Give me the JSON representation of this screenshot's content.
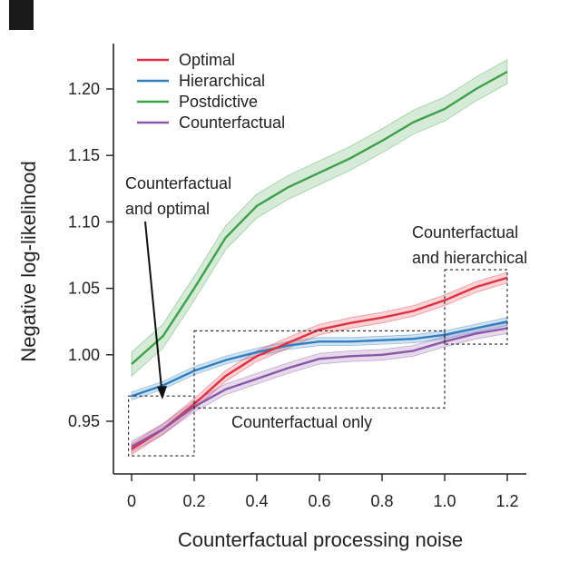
{
  "chart_data": {
    "type": "line",
    "xlabel": "Counterfactual processing noise",
    "ylabel": "Negative log-likelihood",
    "xlim": [
      -0.06,
      1.26
    ],
    "ylim": [
      0.912,
      1.235
    ],
    "xticks": [
      0,
      0.2,
      0.4,
      0.6,
      0.8,
      1.0,
      1.2
    ],
    "xtick_labels": [
      "0",
      "0.2",
      "0.4",
      "0.6",
      "0.8",
      "1.0",
      "1.2"
    ],
    "yticks": [
      0.95,
      1.0,
      1.05,
      1.1,
      1.15,
      1.2
    ],
    "ytick_labels": [
      "0.95",
      "1.00",
      "1.05",
      "1.10",
      "1.15",
      "1.20"
    ],
    "legend_position": "top-left",
    "x": [
      0,
      0.1,
      0.2,
      0.3,
      0.4,
      0.5,
      0.6,
      0.7,
      0.8,
      0.9,
      1.0,
      1.1,
      1.2
    ],
    "series": [
      {
        "name": "Optimal",
        "color": "#e03040",
        "band": 0.004,
        "values": [
          0.929,
          0.944,
          0.963,
          0.984,
          0.999,
          1.009,
          1.019,
          1.024,
          1.028,
          1.033,
          1.041,
          1.051,
          1.058
        ]
      },
      {
        "name": "Hierarchical",
        "color": "#2f7fc1",
        "band": 0.003,
        "values": [
          0.969,
          0.977,
          0.988,
          0.996,
          1.002,
          1.007,
          1.01,
          1.01,
          1.011,
          1.012,
          1.015,
          1.02,
          1.025
        ]
      },
      {
        "name": "Postdictive",
        "color": "#3ea14a",
        "band": 0.009,
        "values": [
          0.993,
          1.014,
          1.05,
          1.088,
          1.112,
          1.126,
          1.137,
          1.148,
          1.161,
          1.175,
          1.185,
          1.2,
          1.213
        ]
      },
      {
        "name": "Counterfactual",
        "color": "#8b58a8",
        "band": 0.004,
        "values": [
          0.931,
          0.944,
          0.961,
          0.974,
          0.982,
          0.99,
          0.997,
          0.999,
          1.0,
          1.003,
          1.01,
          1.016,
          1.02
        ]
      }
    ],
    "annotations": [
      {
        "id": "cf-optimal",
        "lines": [
          "Counterfactual",
          "and optimal"
        ],
        "box": {
          "x0": -0.01,
          "x1": 0.2,
          "y0": 0.924,
          "y1": 0.969
        }
      },
      {
        "id": "cf-only",
        "lines": [
          "Counterfactual only"
        ],
        "box": {
          "x0": 0.2,
          "x1": 1.0,
          "y0": 0.96,
          "y1": 1.018
        }
      },
      {
        "id": "cf-hier",
        "lines": [
          "Counterfactual",
          "and hierarchical"
        ],
        "box": {
          "x0": 1.0,
          "x1": 1.2,
          "y0": 1.008,
          "y1": 1.064
        }
      }
    ]
  }
}
